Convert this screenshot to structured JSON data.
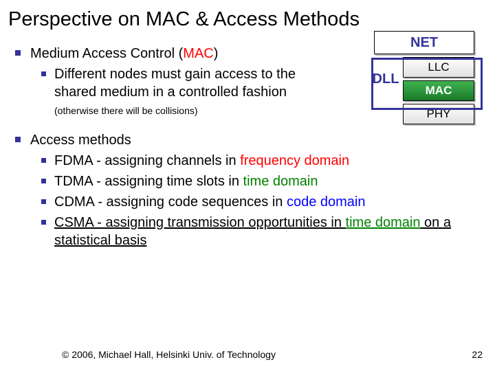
{
  "title": "Perspective on MAC & Access Methods",
  "b1": {
    "head_a": "Medium Access Control (",
    "head_mac": "MAC",
    "head_b": ")",
    "sub_a": "Different nodes must gain access to the shared medium in a controlled fashion ",
    "sub_small": "(otherwise there will be collisions)"
  },
  "b2": {
    "head": "Access methods",
    "i1a": "FDMA - assigning channels in ",
    "i1b": "frequency domain",
    "i2a": "TDMA - assigning time slots in ",
    "i2b": "time domain",
    "i3a": "CDMA - assigning code sequences in ",
    "i3b": "code domain",
    "i4a": "CSMA - assigning transmission opportunities in ",
    "i4b": "time domain",
    "i4c": " on a statistical basis"
  },
  "diagram": {
    "net": "NET",
    "dll": "DLL",
    "llc": "LLC",
    "mac": "MAC",
    "phy": "PHY"
  },
  "footer": "© 2006, Michael Hall, Helsinki Univ. of Technology",
  "page": "22"
}
